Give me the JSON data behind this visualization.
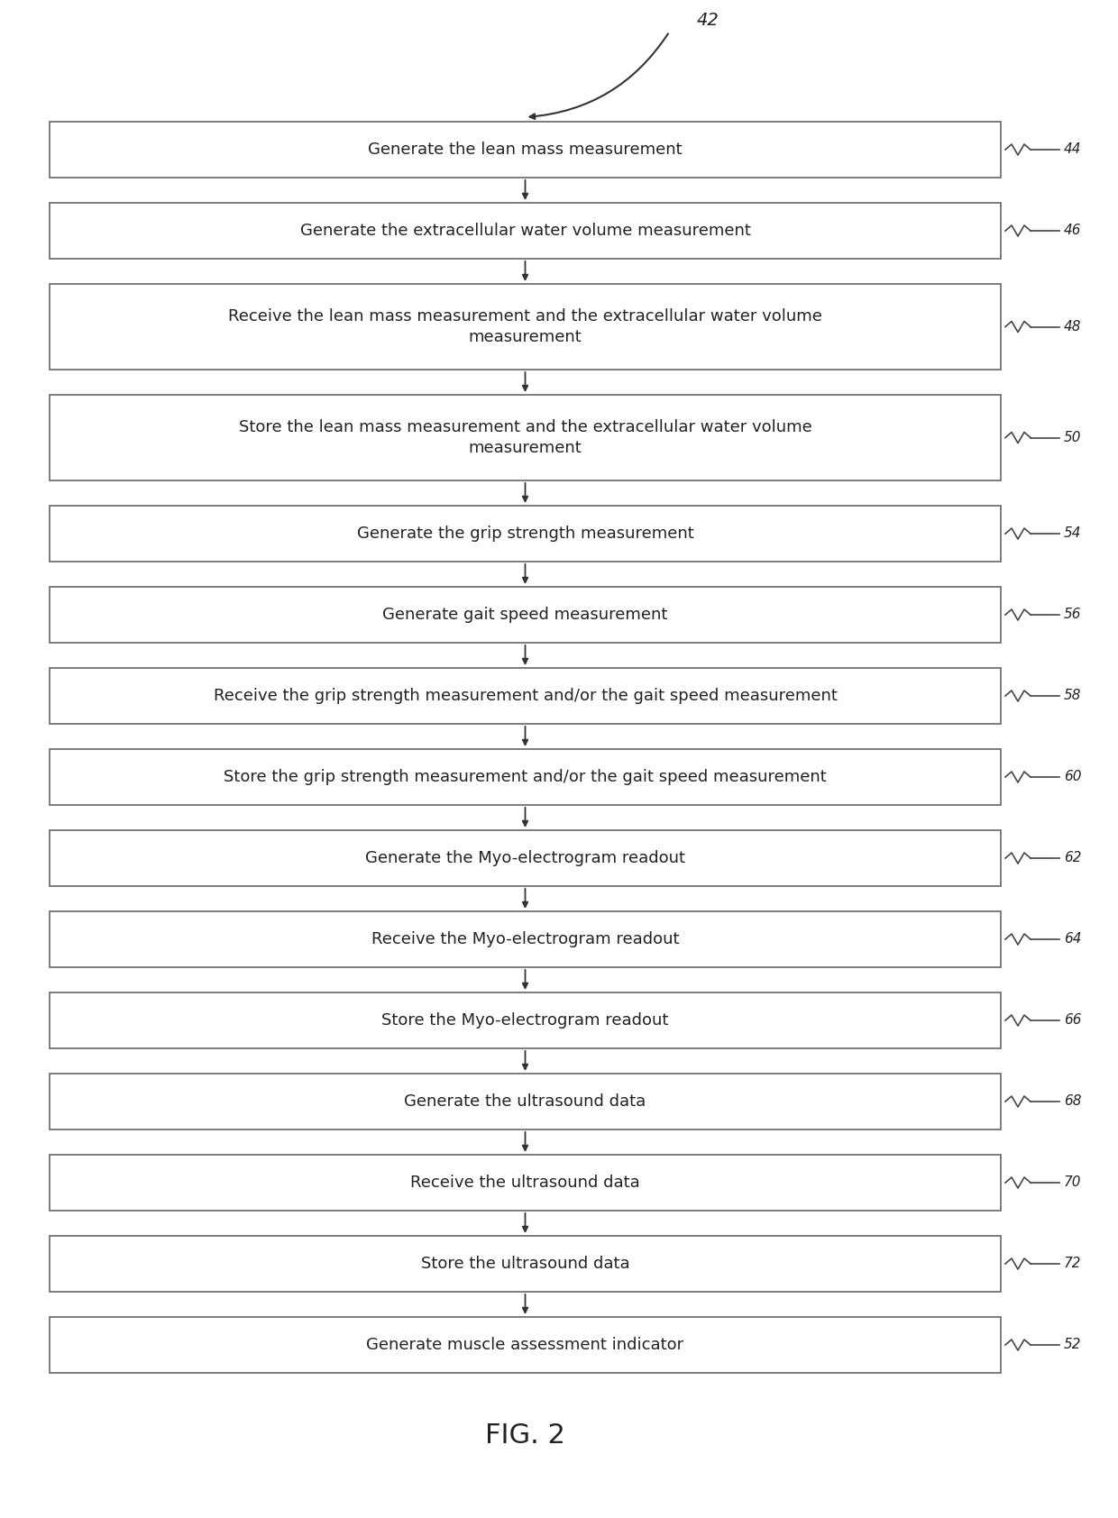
{
  "fig_label": "FIG. 2",
  "top_label": "42",
  "background_color": "#ffffff",
  "boxes": [
    {
      "label": "Generate the lean mass measurement",
      "number": "44",
      "lines": 1
    },
    {
      "label": "Generate the extracellular water volume measurement",
      "number": "46",
      "lines": 1
    },
    {
      "label": "Receive the lean mass measurement and the extracellular water volume\nmeasurement",
      "number": "48",
      "lines": 2
    },
    {
      "label": "Store the lean mass measurement and the extracellular water volume\nmeasurement",
      "number": "50",
      "lines": 2
    },
    {
      "label": "Generate the grip strength measurement",
      "number": "54",
      "lines": 1
    },
    {
      "label": "Generate gait speed measurement",
      "number": "56",
      "lines": 1
    },
    {
      "label": "Receive the grip strength measurement and/or the gait speed measurement",
      "number": "58",
      "lines": 1
    },
    {
      "label": "Store the grip strength measurement and/or the gait speed measurement",
      "number": "60",
      "lines": 1
    },
    {
      "label": "Generate the Myo-electrogram readout",
      "number": "62",
      "lines": 1
    },
    {
      "label": "Receive the Myo-electrogram readout",
      "number": "64",
      "lines": 1
    },
    {
      "label": "Store the Myo-electrogram readout",
      "number": "66",
      "lines": 1
    },
    {
      "label": "Generate the ultrasound data",
      "number": "68",
      "lines": 1
    },
    {
      "label": "Receive the ultrasound data",
      "number": "70",
      "lines": 1
    },
    {
      "label": "Store the ultrasound data",
      "number": "72",
      "lines": 1
    },
    {
      "label": "Generate muscle assessment indicator",
      "number": "52",
      "lines": 1
    }
  ],
  "box_color": "#ffffff",
  "box_edge_color": "#666666",
  "text_color": "#222222",
  "arrow_color": "#333333",
  "number_color": "#444444",
  "font_size": 13,
  "number_font_size": 11,
  "fig_label_font_size": 22
}
